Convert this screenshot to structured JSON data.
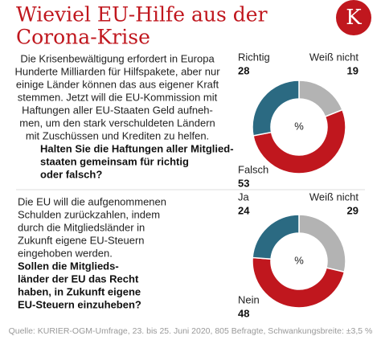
{
  "header": {
    "title_lines": [
      "Wieviel EU-Hilfe aus der",
      "Corona-Krise"
    ],
    "logo": "K"
  },
  "chart_data": [
    {
      "type": "pie",
      "intro_lines": [
        "Die Krisenbewältigung erfordert in Europa",
        "Hunderte Milliarden für Hilfspakete, aber nur",
        "einige Länder können das aus eigener Kraft",
        "stemmen. Jetzt will die EU-Kommission mit",
        "Haftungen aller EU-Staaten Geld aufneh-",
        "men, um den stark verschuldeten Ländern",
        "mit Zuschüssen und Krediten zu helfen."
      ],
      "question_lines": [
        "Halten Sie die Haftungen aller Mitglied-",
        "staaten gemeinsam für richtig",
        "oder falsch?"
      ],
      "center_label": "%",
      "categories": [
        "Weiß nicht",
        "Falsch",
        "Richtig"
      ],
      "values": [
        19,
        53,
        28
      ],
      "colors": [
        "#b3b3b3",
        "#c0171e",
        "#2b6a82"
      ]
    },
    {
      "type": "pie",
      "intro_lines": [
        "Die EU will die aufgenommenen",
        "Schulden zurückzahlen, indem",
        "durch die Mitgliedsländer in",
        "Zukunft eigene EU-Steuern",
        "eingehoben werden."
      ],
      "question_lines": [
        "Sollen die Mitglieds-",
        "länder der EU das Recht",
        "haben, in Zukunft eigene",
        "EU-Steuern einzuheben?"
      ],
      "center_label": "%",
      "categories": [
        "Weiß nicht",
        "Nein",
        "Ja"
      ],
      "values": [
        29,
        48,
        24
      ],
      "colors": [
        "#b3b3b3",
        "#c0171e",
        "#2b6a82"
      ]
    }
  ],
  "source": "Quelle: KURIER-OGM-Umfrage, 23. bis 25. Juni 2020, 805 Befragte, Schwankungsbreite: ±3,5 %"
}
